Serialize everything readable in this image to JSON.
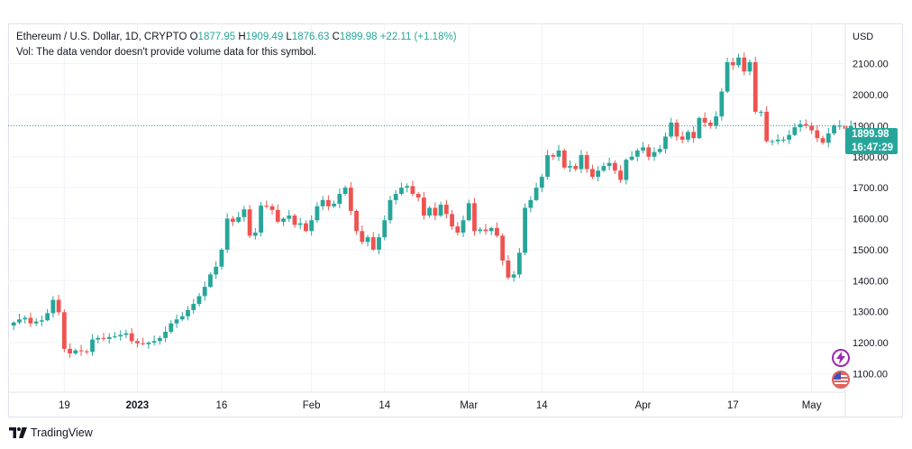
{
  "legend": {
    "symbol": "Ethereum / U.S. Dollar, 1D, CRYPTO",
    "open_label": "O",
    "open": "1877.95",
    "high_label": "H",
    "high": "1909.49",
    "low_label": "L",
    "low": "1876.63",
    "close_label": "C",
    "close": "1899.98",
    "change": "+22.11 (+1.18%)",
    "volume_note": "Vol: The data vendor doesn't provide volume data for this symbol."
  },
  "price_axis": {
    "currency": "USD",
    "last_price": "1899.98",
    "countdown": "16:47:29"
  },
  "branding": {
    "name": "TradingView"
  },
  "colors": {
    "up": "#26a69a",
    "down": "#ef5350",
    "grid": "#f0f3fa",
    "axis_text": "#131722"
  },
  "chart_data": {
    "type": "candlestick",
    "title": "Ethereum / U.S. Dollar, 1D, CRYPTO",
    "ylabel": "USD",
    "ylim": [
      1040,
      2230
    ],
    "y_ticks": [
      1100,
      1200,
      1300,
      1400,
      1500,
      1600,
      1700,
      1800,
      1900,
      2000,
      2100
    ],
    "x_range": [
      "2022-12-09",
      "2023-05-07"
    ],
    "x_ticks": [
      {
        "date": "2022-12-19",
        "label": "19"
      },
      {
        "date": "2023-01-01",
        "label": "2023"
      },
      {
        "date": "2023-01-16",
        "label": "16"
      },
      {
        "date": "2023-02-01",
        "label": "Feb"
      },
      {
        "date": "2023-02-14",
        "label": "14"
      },
      {
        "date": "2023-03-01",
        "label": "Mar"
      },
      {
        "date": "2023-03-14",
        "label": "14"
      },
      {
        "date": "2023-04-01",
        "label": "Apr"
      },
      {
        "date": "2023-04-17",
        "label": "17"
      },
      {
        "date": "2023-05-01",
        "label": "May"
      }
    ],
    "last_price_line": 1899.98,
    "series": [
      {
        "name": "ETHUSD",
        "start_date": "2022-12-10",
        "close": [
          1265,
          1275,
          1280,
          1262,
          1268,
          1272,
          1295,
          1338,
          1298,
          1180,
          1165,
          1175,
          1172,
          1170,
          1210,
          1215,
          1212,
          1218,
          1220,
          1225,
          1230,
          1205,
          1198,
          1195,
          1200,
          1205,
          1215,
          1235,
          1262,
          1275,
          1285,
          1305,
          1325,
          1350,
          1380,
          1420,
          1445,
          1500,
          1600,
          1590,
          1605,
          1630,
          1545,
          1555,
          1642,
          1640,
          1628,
          1590,
          1600,
          1610,
          1580,
          1585,
          1560,
          1595,
          1640,
          1660,
          1640,
          1648,
          1680,
          1700,
          1625,
          1560,
          1525,
          1540,
          1500,
          1540,
          1595,
          1660,
          1680,
          1700,
          1705,
          1680,
          1668,
          1610,
          1635,
          1610,
          1645,
          1615,
          1575,
          1555,
          1595,
          1650,
          1560,
          1565,
          1560,
          1570,
          1545,
          1465,
          1410,
          1420,
          1490,
          1635,
          1660,
          1700,
          1735,
          1805,
          1800,
          1820,
          1765,
          1770,
          1760,
          1805,
          1760,
          1735,
          1755,
          1770,
          1780,
          1755,
          1725,
          1790,
          1800,
          1820,
          1830,
          1800,
          1815,
          1825,
          1865,
          1910,
          1865,
          1855,
          1880,
          1860,
          1925,
          1910,
          1900,
          1930,
          2010,
          2105,
          2095,
          2120,
          2075,
          2105,
          1945,
          1945,
          1850,
          1850,
          1855,
          1855,
          1870,
          1895,
          1905,
          1900,
          1885,
          1860,
          1845,
          1875,
          1900,
          1900,
          1890,
          1900
        ]
      }
    ]
  }
}
